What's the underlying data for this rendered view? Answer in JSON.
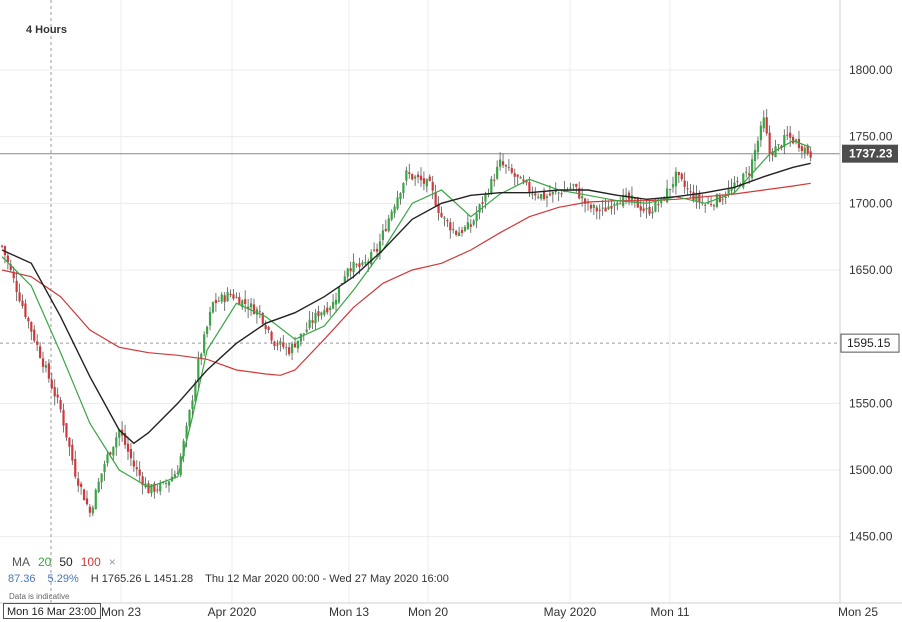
{
  "interval_label": "4 Hours",
  "ma_legend": {
    "label": "MA",
    "p20": "20",
    "p50": "50",
    "p100": "100",
    "close_glyph": "×"
  },
  "ma_colors": {
    "ma20": "#3aa544",
    "ma50": "#222222",
    "ma100": "#d0393b"
  },
  "stats": {
    "change": "87.36",
    "change_pct": "5.29%",
    "high_low": "H 1765.26  L 1451.28",
    "date_range": "Thu 12 Mar 2020 00:00 - Wed 27 May 2020 16:00"
  },
  "notice": "Data is indicative",
  "crosshair_x_label": "Mon 16 Mar 23:00",
  "chart_data": {
    "type": "candlestick",
    "title": "",
    "xlabel": "",
    "ylabel": "",
    "ylim": [
      1415,
      1835
    ],
    "grid": true,
    "y_ticks": [
      "1800.00",
      "1750.00",
      "1700.00",
      "1650.00",
      "1595.15",
      "1550.00",
      "1500.00",
      "1450.00"
    ],
    "x_ticks": [
      "Mon 23",
      "Apr 2020",
      "Mon 13",
      "Mon 20",
      "May 2020",
      "Mon 11",
      "Mon 25"
    ],
    "current_price_label": "1737.23",
    "crosshair_price_label": "1595.15",
    "candle_colors": {
      "up": "#3aa544",
      "down": "#d0393b"
    },
    "close_path": [
      [
        0,
        1668
      ],
      [
        5,
        1636
      ],
      [
        10,
        1605
      ],
      [
        15,
        1575
      ],
      [
        20,
        1545
      ],
      [
        25,
        1498
      ],
      [
        30,
        1468
      ],
      [
        35,
        1505
      ],
      [
        40,
        1530
      ],
      [
        45,
        1503
      ],
      [
        50,
        1485
      ],
      [
        55,
        1488
      ],
      [
        60,
        1500
      ],
      [
        63,
        1530
      ],
      [
        67,
        1580
      ],
      [
        72,
        1625
      ],
      [
        78,
        1632
      ],
      [
        83,
        1625
      ],
      [
        88,
        1618
      ],
      [
        93,
        1596
      ],
      [
        98,
        1590
      ],
      [
        103,
        1603
      ],
      [
        108,
        1618
      ],
      [
        113,
        1625
      ],
      [
        118,
        1653
      ],
      [
        123,
        1652
      ],
      [
        128,
        1665
      ],
      [
        133,
        1695
      ],
      [
        138,
        1722
      ],
      [
        142,
        1718
      ],
      [
        146,
        1713
      ],
      [
        150,
        1690
      ],
      [
        155,
        1678
      ],
      [
        160,
        1683
      ],
      [
        165,
        1706
      ],
      [
        170,
        1730
      ],
      [
        175,
        1720
      ],
      [
        180,
        1710
      ],
      [
        185,
        1705
      ],
      [
        190,
        1708
      ],
      [
        195,
        1713
      ],
      [
        200,
        1697
      ],
      [
        205,
        1694
      ],
      [
        210,
        1704
      ],
      [
        215,
        1702
      ],
      [
        220,
        1694
      ],
      [
        225,
        1701
      ],
      [
        230,
        1720
      ],
      [
        235,
        1707
      ],
      [
        240,
        1699
      ],
      [
        245,
        1704
      ],
      [
        250,
        1712
      ],
      [
        255,
        1724
      ],
      [
        258,
        1747
      ],
      [
        260,
        1762
      ],
      [
        262,
        1738
      ],
      [
        265,
        1742
      ],
      [
        268,
        1750
      ],
      [
        272,
        1745
      ],
      [
        276,
        1737
      ]
    ],
    "ma20_path": [
      [
        0,
        1660
      ],
      [
        10,
        1638
      ],
      [
        20,
        1588
      ],
      [
        30,
        1535
      ],
      [
        40,
        1500
      ],
      [
        50,
        1487
      ],
      [
        60,
        1495
      ],
      [
        65,
        1540
      ],
      [
        70,
        1590
      ],
      [
        80,
        1625
      ],
      [
        90,
        1615
      ],
      [
        100,
        1598
      ],
      [
        110,
        1608
      ],
      [
        120,
        1635
      ],
      [
        130,
        1665
      ],
      [
        140,
        1700
      ],
      [
        150,
        1710
      ],
      [
        160,
        1690
      ],
      [
        170,
        1707
      ],
      [
        180,
        1718
      ],
      [
        190,
        1710
      ],
      [
        200,
        1706
      ],
      [
        210,
        1702
      ],
      [
        220,
        1700
      ],
      [
        230,
        1705
      ],
      [
        240,
        1700
      ],
      [
        250,
        1708
      ],
      [
        255,
        1720
      ],
      [
        262,
        1737
      ],
      [
        270,
        1747
      ],
      [
        276,
        1742
      ]
    ],
    "ma50_path": [
      [
        0,
        1665
      ],
      [
        10,
        1655
      ],
      [
        20,
        1615
      ],
      [
        30,
        1570
      ],
      [
        40,
        1530
      ],
      [
        45,
        1520
      ],
      [
        50,
        1528
      ],
      [
        60,
        1550
      ],
      [
        70,
        1575
      ],
      [
        80,
        1595
      ],
      [
        90,
        1610
      ],
      [
        100,
        1618
      ],
      [
        110,
        1630
      ],
      [
        120,
        1645
      ],
      [
        130,
        1665
      ],
      [
        140,
        1688
      ],
      [
        150,
        1700
      ],
      [
        160,
        1706
      ],
      [
        170,
        1708
      ],
      [
        180,
        1708
      ],
      [
        190,
        1710
      ],
      [
        200,
        1710
      ],
      [
        210,
        1706
      ],
      [
        220,
        1703
      ],
      [
        230,
        1705
      ],
      [
        240,
        1708
      ],
      [
        250,
        1712
      ],
      [
        260,
        1720
      ],
      [
        270,
        1727
      ],
      [
        276,
        1730
      ]
    ],
    "ma100_path": [
      [
        0,
        1650
      ],
      [
        10,
        1645
      ],
      [
        20,
        1630
      ],
      [
        30,
        1605
      ],
      [
        40,
        1592
      ],
      [
        50,
        1588
      ],
      [
        60,
        1586
      ],
      [
        70,
        1583
      ],
      [
        80,
        1575
      ],
      [
        90,
        1572
      ],
      [
        95,
        1571
      ],
      [
        100,
        1575
      ],
      [
        110,
        1598
      ],
      [
        120,
        1622
      ],
      [
        130,
        1640
      ],
      [
        140,
        1650
      ],
      [
        150,
        1655
      ],
      [
        160,
        1665
      ],
      [
        170,
        1678
      ],
      [
        180,
        1690
      ],
      [
        190,
        1697
      ],
      [
        200,
        1701
      ],
      [
        210,
        1702
      ],
      [
        220,
        1702
      ],
      [
        230,
        1703
      ],
      [
        240,
        1705
      ],
      [
        250,
        1707
      ],
      [
        260,
        1710
      ],
      [
        270,
        1713
      ],
      [
        276,
        1715
      ]
    ]
  }
}
